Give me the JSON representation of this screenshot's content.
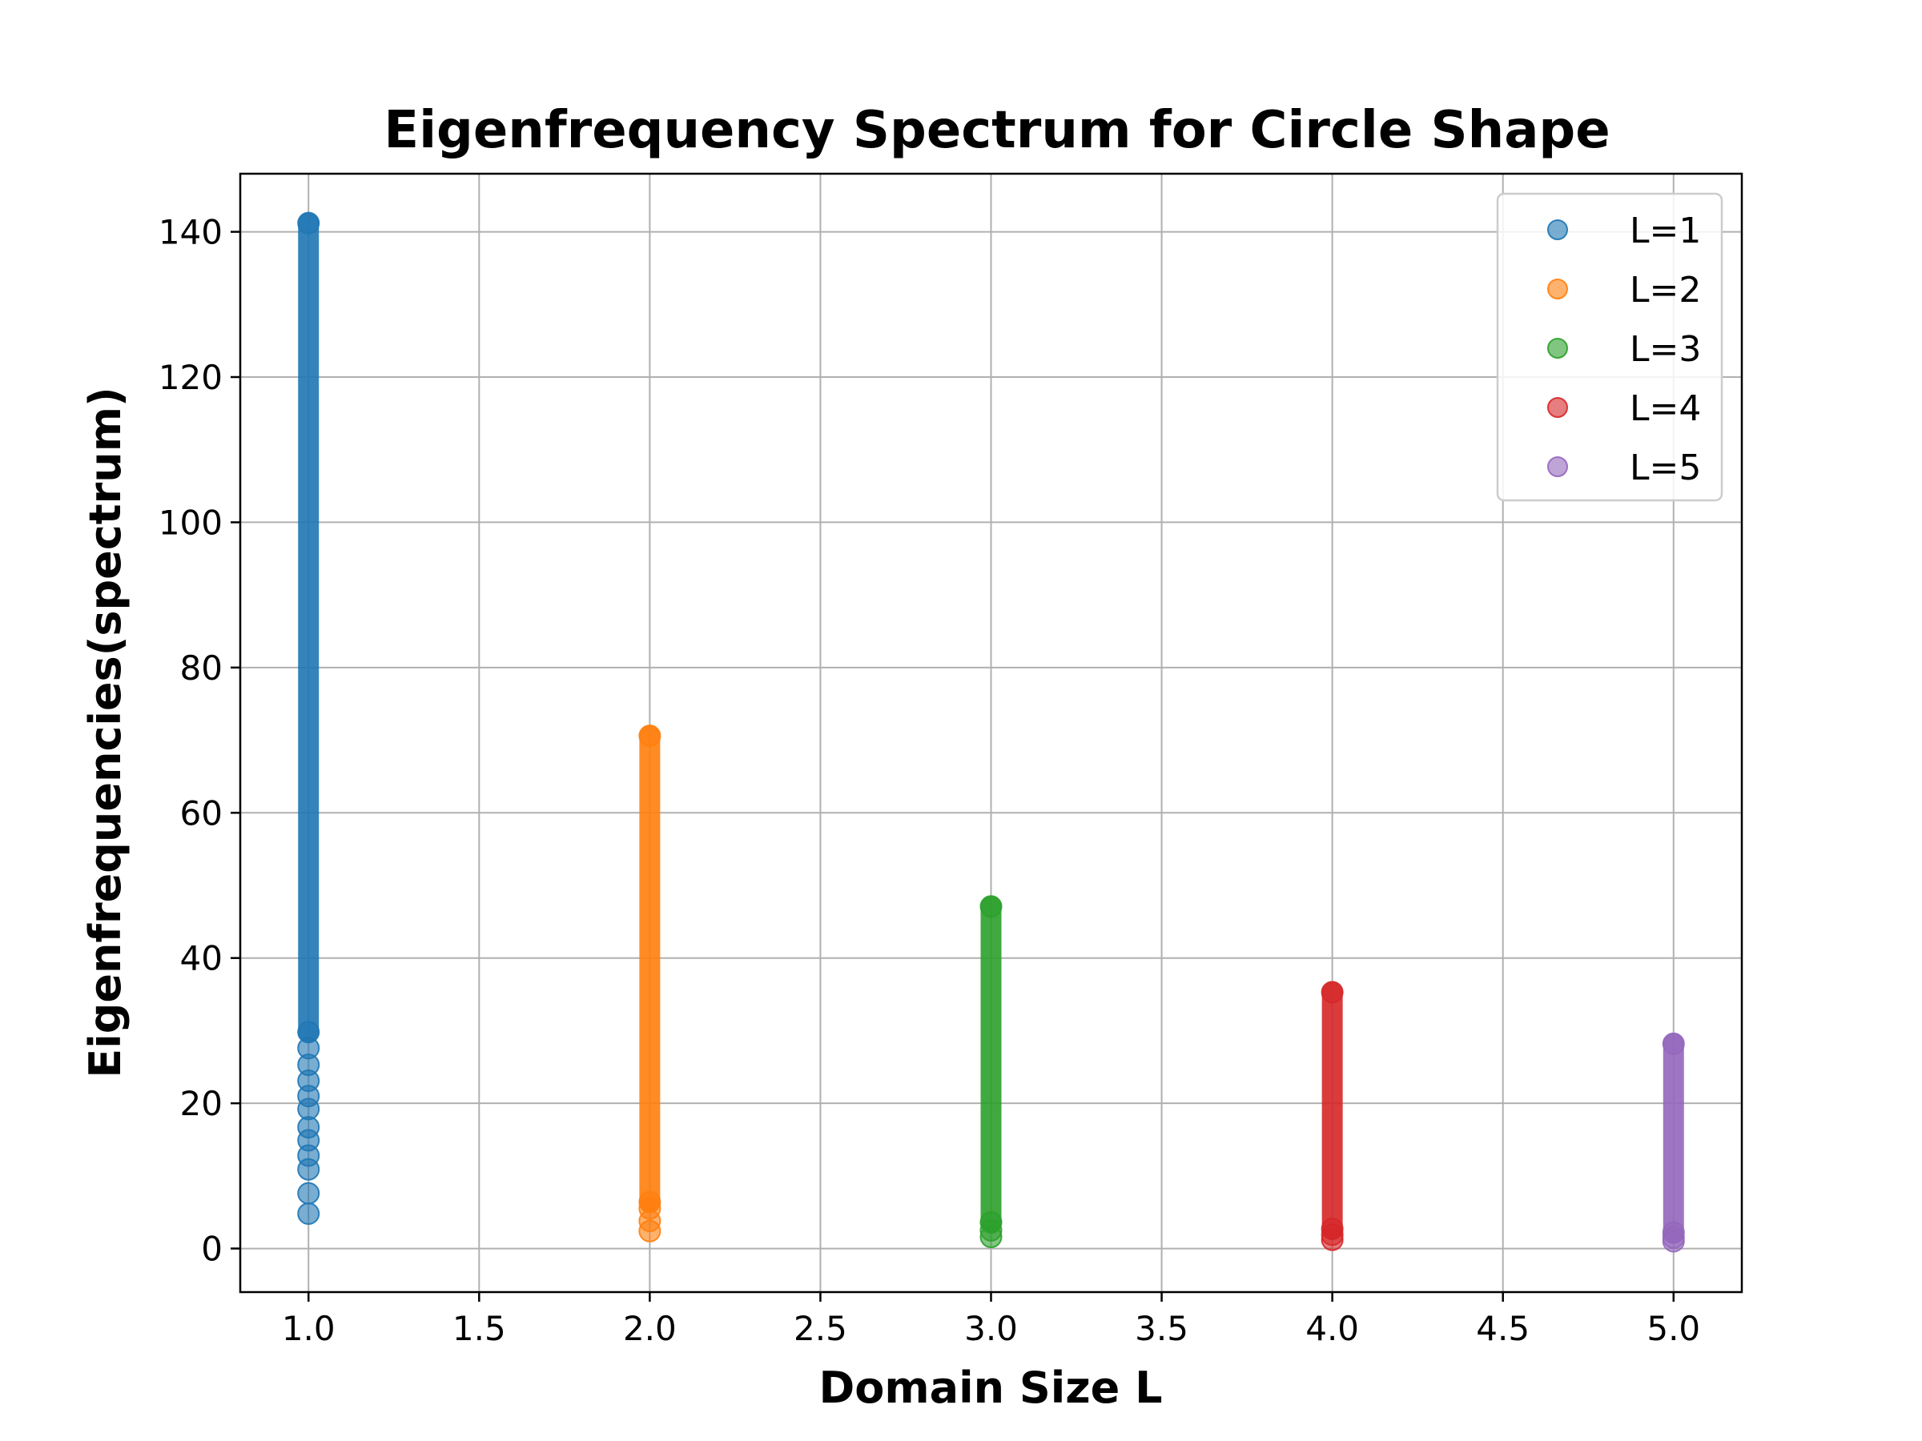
{
  "chart_data": {
    "type": "scatter",
    "title": "Eigenfrequency Spectrum for Circle Shape",
    "xlabel": "Domain Size L",
    "ylabel": "Eigenfrequencies(spectrum)",
    "xlim": [
      0.8,
      5.2
    ],
    "ylim": [
      -6,
      148
    ],
    "xticks": [
      1.0,
      1.5,
      2.0,
      2.5,
      3.0,
      3.5,
      4.0,
      4.5,
      5.0
    ],
    "xtick_labels": [
      "1.0",
      "1.5",
      "2.0",
      "2.5",
      "3.0",
      "3.5",
      "4.0",
      "4.5",
      "5.0"
    ],
    "yticks": [
      0,
      20,
      40,
      60,
      80,
      100,
      120,
      140
    ],
    "ytick_labels": [
      "0",
      "20",
      "40",
      "60",
      "80",
      "100",
      "120",
      "140"
    ],
    "grid": true,
    "legend_position": "top-right",
    "series": [
      {
        "name": "L=1",
        "x": 1,
        "color": "#1f77b4",
        "min": 4.8,
        "max": 141.2,
        "notable": [
          4.8,
          7.6,
          10.9,
          12.8,
          14.9,
          16.7,
          19.2,
          21.0,
          23.1,
          25.3,
          27.6,
          29.8
        ]
      },
      {
        "name": "L=2",
        "x": 2,
        "color": "#ff7f0e",
        "min": 2.4,
        "max": 70.6,
        "notable": [
          2.4,
          3.8,
          5.5,
          6.4
        ]
      },
      {
        "name": "L=3",
        "x": 3,
        "color": "#2ca02c",
        "min": 1.6,
        "max": 47.1,
        "notable": [
          1.6,
          2.5,
          3.6
        ]
      },
      {
        "name": "L=4",
        "x": 4,
        "color": "#d62728",
        "min": 1.2,
        "max": 35.3,
        "notable": [
          1.2,
          1.9,
          2.7
        ]
      },
      {
        "name": "L=5",
        "x": 5,
        "color": "#9467bd",
        "min": 1.0,
        "max": 28.2,
        "notable": [
          1.0,
          1.5,
          2.2
        ]
      }
    ]
  }
}
